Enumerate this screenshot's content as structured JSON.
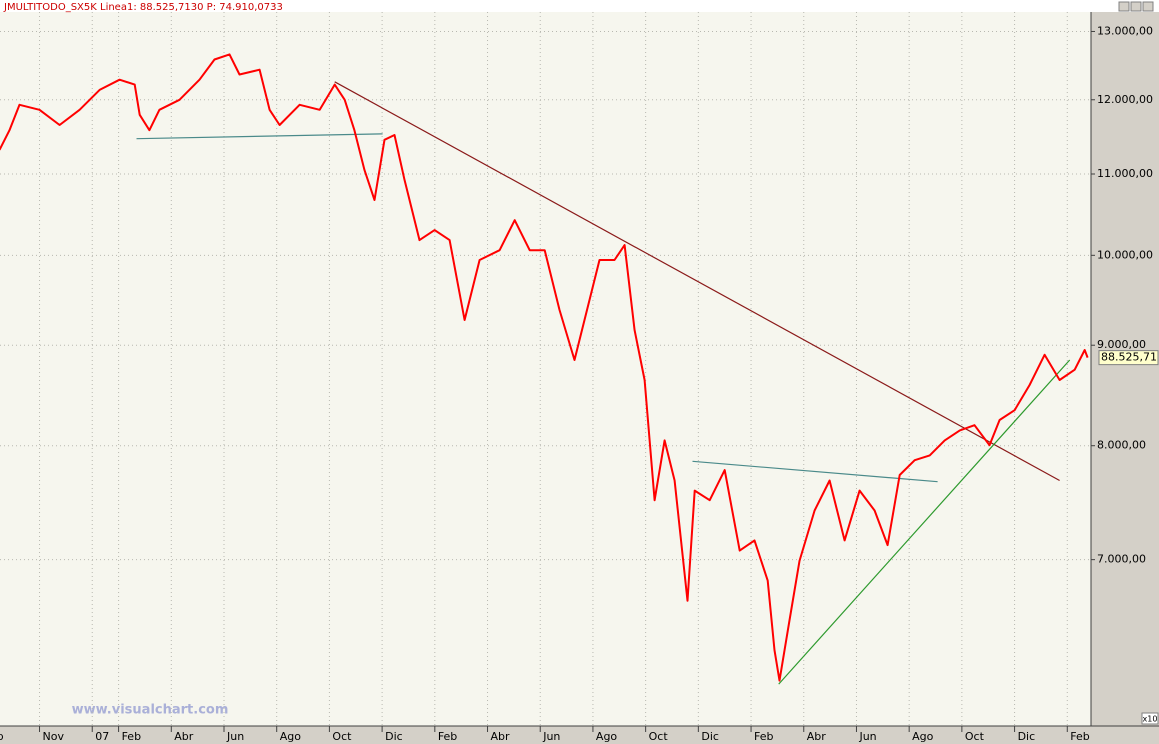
{
  "chart_data": {
    "type": "line",
    "title": "JMULTITODO_SX5K Linea1: 88.525,7130 P: 74.910,0733",
    "watermark": "www.visualchart.com",
    "last_value_label": "88.525,71",
    "multiplier_label": "x10",
    "log_scale": true,
    "grid": true,
    "xlim": [
      0.5,
      41.9
    ],
    "ylim": [
      5760,
      13300
    ],
    "xticks": [
      {
        "value": 0,
        "label": "ep"
      },
      {
        "value": 2,
        "label": "Nov"
      },
      {
        "value": 4,
        "label": "07"
      },
      {
        "value": 5,
        "label": "Feb"
      },
      {
        "value": 7,
        "label": "Abr"
      },
      {
        "value": 9,
        "label": "Jun"
      },
      {
        "value": 11,
        "label": "Ago"
      },
      {
        "value": 13,
        "label": "Oct"
      },
      {
        "value": 15,
        "label": "Dic"
      },
      {
        "value": 17,
        "label": "Feb"
      },
      {
        "value": 19,
        "label": "Abr"
      },
      {
        "value": 21,
        "label": "Jun"
      },
      {
        "value": 23,
        "label": "Ago"
      },
      {
        "value": 25,
        "label": "Oct"
      },
      {
        "value": 27,
        "label": "Dic"
      },
      {
        "value": 29,
        "label": "Feb"
      },
      {
        "value": 31,
        "label": "Abr"
      },
      {
        "value": 33,
        "label": "Jun"
      },
      {
        "value": 35,
        "label": "Ago"
      },
      {
        "value": 37,
        "label": "Oct"
      },
      {
        "value": 39,
        "label": "Dic"
      },
      {
        "value": 41,
        "label": "Feb"
      }
    ],
    "yticks": [
      {
        "value": 7000,
        "label": "7.000,00"
      },
      {
        "value": 8000,
        "label": "8.000,00"
      },
      {
        "value": 9000,
        "label": "9.000,00"
      },
      {
        "value": 10000,
        "label": "10.000,00"
      },
      {
        "value": 11000,
        "label": "11.000,00"
      },
      {
        "value": 12000,
        "label": "12.000,00"
      },
      {
        "value": 13000,
        "label": "13.000,00"
      }
    ],
    "series": [
      {
        "color": "#ff0000",
        "x": [
          0.48,
          0.86,
          1.24,
          2.0,
          2.76,
          3.52,
          4.28,
          5.04,
          5.61,
          5.8,
          6.17,
          6.55,
          7.31,
          8.07,
          8.64,
          9.21,
          9.59,
          10.35,
          10.73,
          11.11,
          11.87,
          12.63,
          13.2,
          13.58,
          13.95,
          14.33,
          14.71,
          15.09,
          15.47,
          15.85,
          16.42,
          16.99,
          17.56,
          18.13,
          18.7,
          19.46,
          20.03,
          20.6,
          21.17,
          21.73,
          22.3,
          22.87,
          23.25,
          23.82,
          24.2,
          24.58,
          24.96,
          25.34,
          25.72,
          26.1,
          26.59,
          26.86,
          27.43,
          28.0,
          28.57,
          29.13,
          29.63,
          29.89,
          30.08,
          30.46,
          30.84,
          31.41,
          31.98,
          32.55,
          33.12,
          33.69,
          34.18,
          34.64,
          35.21,
          35.78,
          36.35,
          36.92,
          37.48,
          38.05,
          38.43,
          39.0,
          39.57,
          40.14,
          40.71,
          41.28,
          41.66,
          41.77
        ],
        "values": [
          11315,
          11580,
          11930,
          11860,
          11650,
          11860,
          12140,
          12285,
          12215,
          11790,
          11580,
          11860,
          12000,
          12285,
          12580,
          12655,
          12360,
          12430,
          11860,
          11650,
          11930,
          11860,
          12215,
          12000,
          11580,
          11050,
          10670,
          11450,
          11515,
          10925,
          10180,
          10300,
          10180,
          9270,
          9945,
          10060,
          10420,
          10060,
          10060,
          9380,
          8845,
          9490,
          9945,
          9945,
          10120,
          9160,
          8640,
          7505,
          8050,
          7680,
          6670,
          7590,
          7505,
          7775,
          7075,
          7160,
          6830,
          6295,
          6075,
          6520,
          6990,
          7415,
          7680,
          7160,
          7590,
          7415,
          7120,
          7730,
          7865,
          7910,
          8050,
          8145,
          8195,
          8005,
          8245,
          8340,
          8590,
          8900,
          8640,
          8745,
          8950,
          8870
        ]
      }
    ],
    "trendlines": [
      {
        "color": "#8b1a1a",
        "x": [
          13.2,
          40.71
        ],
        "values": [
          12255,
          7680
        ]
      },
      {
        "color": "#4a8a8a",
        "x": [
          5.68,
          15.02
        ],
        "values": [
          11465,
          11530
        ]
      },
      {
        "color": "#4a8a8a",
        "x": [
          26.78,
          36.08
        ],
        "values": [
          7855,
          7670
        ]
      },
      {
        "color": "#2e9a2e",
        "x": [
          30.05,
          41.09
        ],
        "values": [
          6050,
          8845
        ]
      }
    ]
  }
}
